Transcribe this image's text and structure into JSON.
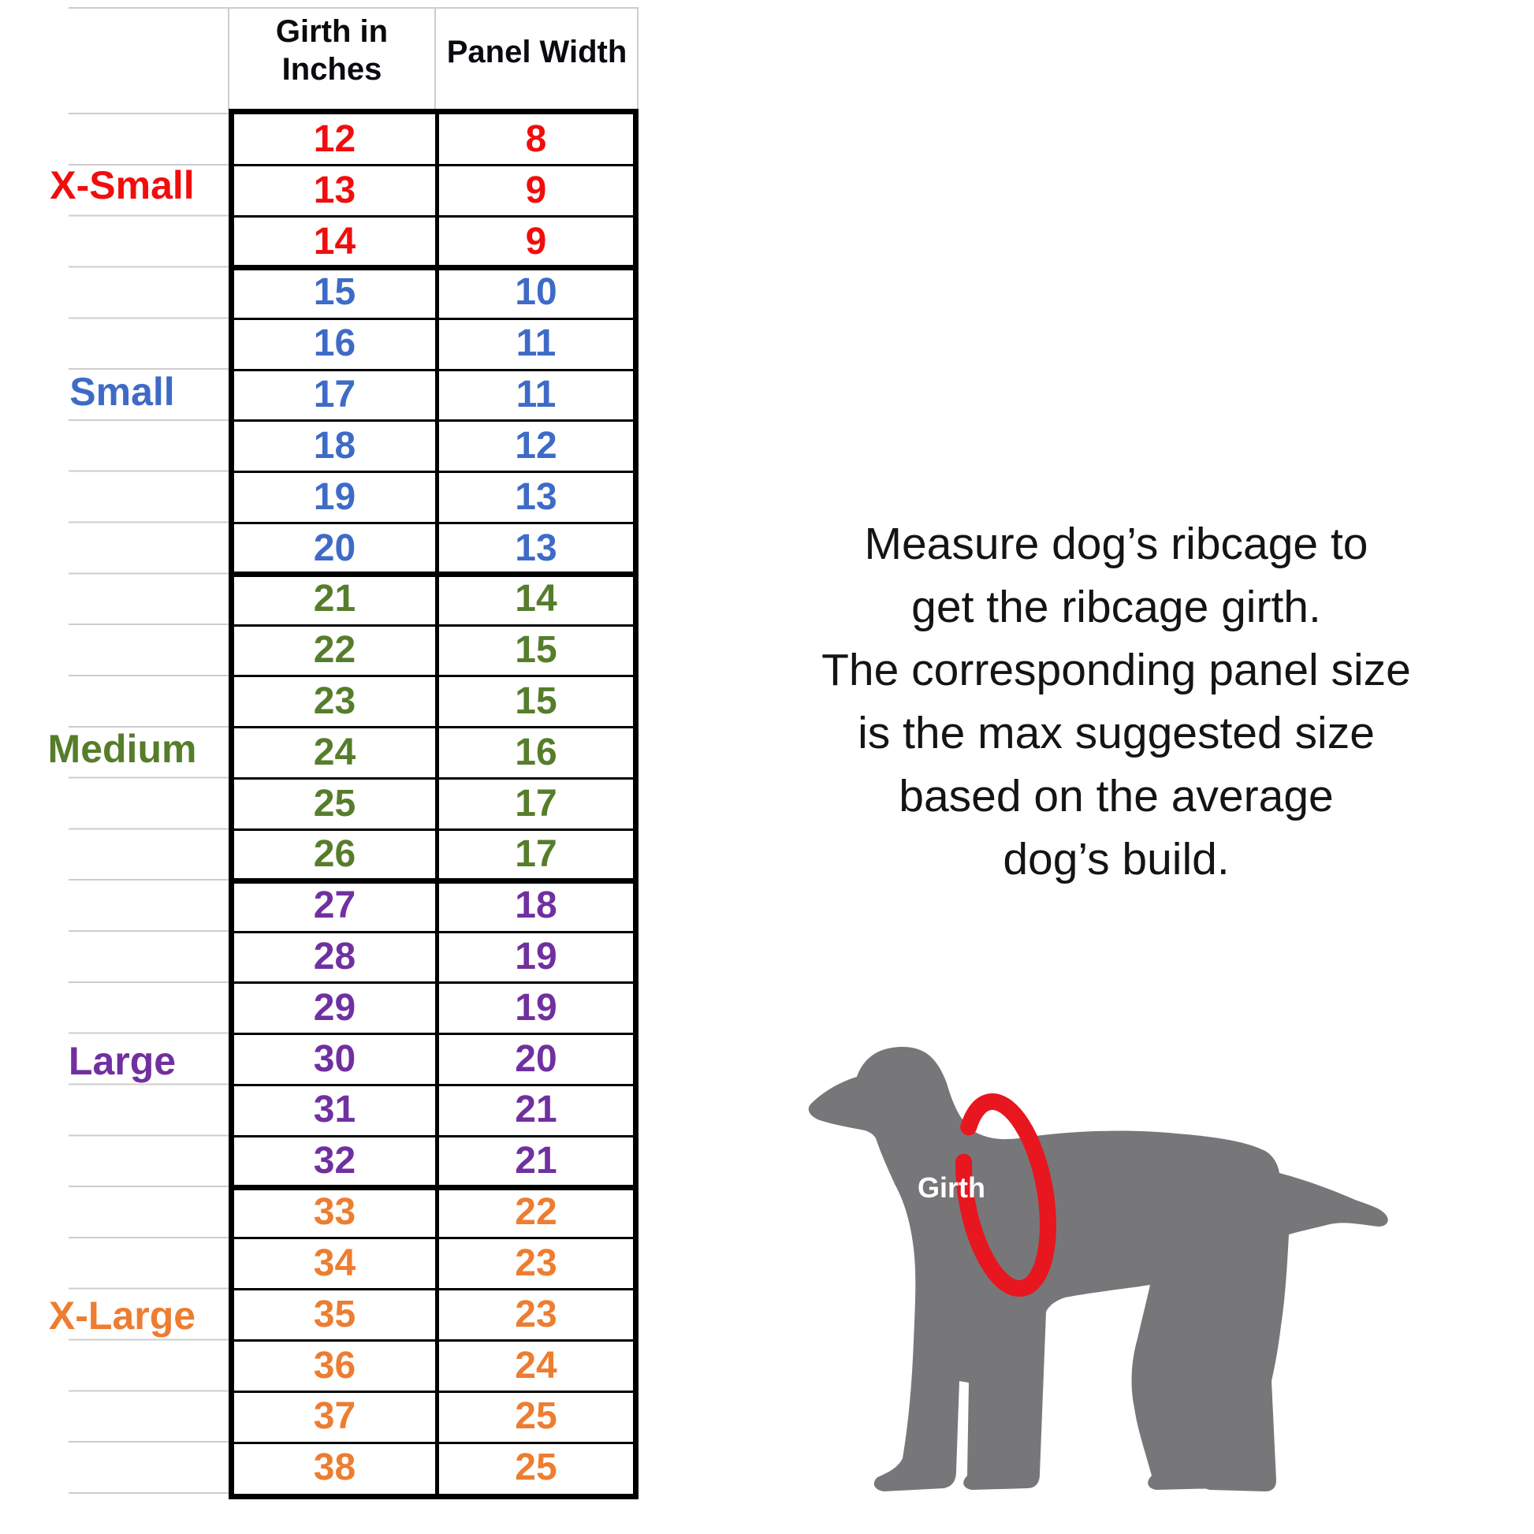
{
  "table": {
    "col_headers": {
      "girth": "Girth in Inches",
      "panel": "Panel Width"
    },
    "groups": [
      {
        "label": "X-Small",
        "color": "#F20D0D",
        "rows": [
          [
            12,
            8
          ],
          [
            13,
            9
          ],
          [
            14,
            9
          ]
        ]
      },
      {
        "label": "Small",
        "color": "#3E6BC7",
        "rows": [
          [
            15,
            10
          ],
          [
            16,
            11
          ],
          [
            17,
            11
          ],
          [
            18,
            12
          ],
          [
            19,
            13
          ],
          [
            20,
            13
          ]
        ]
      },
      {
        "label": "Medium",
        "color": "#567D2B",
        "rows": [
          [
            21,
            14
          ],
          [
            22,
            15
          ],
          [
            23,
            15
          ],
          [
            24,
            16
          ],
          [
            25,
            17
          ],
          [
            26,
            17
          ]
        ]
      },
      {
        "label": "Large",
        "color": "#7030A0",
        "rows": [
          [
            27,
            18
          ],
          [
            28,
            19
          ],
          [
            29,
            19
          ],
          [
            30,
            20
          ],
          [
            31,
            21
          ],
          [
            32,
            21
          ]
        ]
      },
      {
        "label": "X-Large",
        "color": "#ED7D31",
        "rows": [
          [
            33,
            22
          ],
          [
            34,
            23
          ],
          [
            35,
            23
          ],
          [
            36,
            24
          ],
          [
            37,
            25
          ],
          [
            38,
            25
          ]
        ]
      }
    ]
  },
  "note": {
    "lines": [
      "Measure dog’s ribcage to",
      "get the ribcage girth.",
      "The corresponding panel size",
      "is the max suggested size",
      "based on the average",
      "dog’s build."
    ]
  },
  "diagram": {
    "girth_label": "Girth",
    "dog_color": "#77777A",
    "ring_color": "#E8161E",
    "label_text_color": "#FFFFFF"
  }
}
